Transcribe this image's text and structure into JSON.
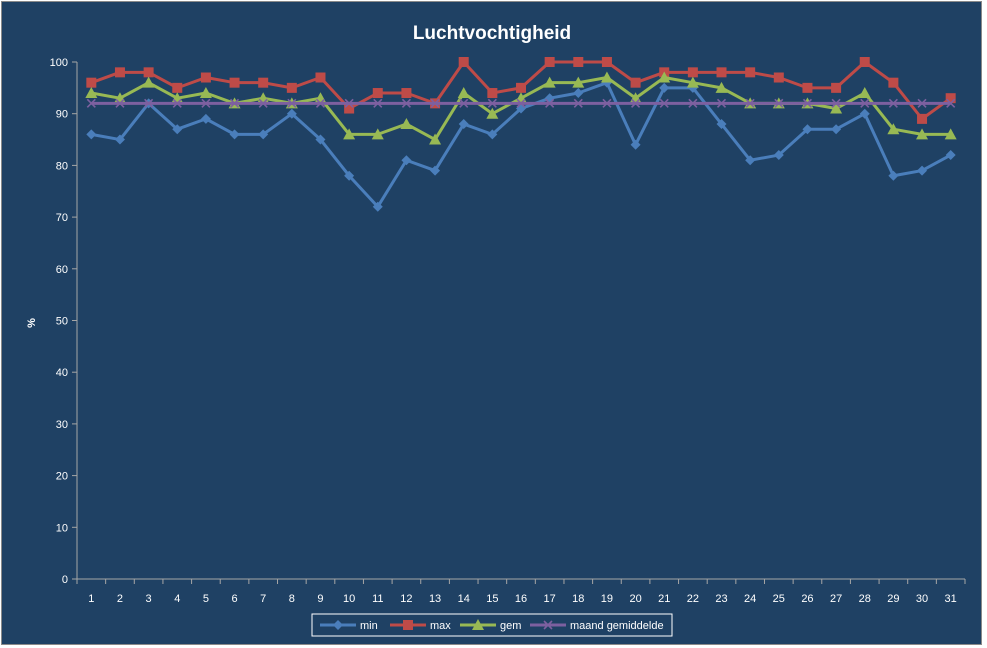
{
  "chart_data": {
    "type": "line",
    "title": "Luchtvochtigheid",
    "xlabel": "",
    "ylabel": "%",
    "ylim": [
      0,
      100
    ],
    "yticks": [
      0,
      10,
      20,
      30,
      40,
      50,
      60,
      70,
      80,
      90,
      100
    ],
    "grid": false,
    "legend_position": "bottom",
    "categories": [
      "1",
      "2",
      "3",
      "4",
      "5",
      "6",
      "7",
      "8",
      "9",
      "10",
      "11",
      "12",
      "13",
      "14",
      "15",
      "16",
      "17",
      "18",
      "19",
      "20",
      "21",
      "22",
      "23",
      "24",
      "25",
      "26",
      "27",
      "28",
      "29",
      "30",
      "31"
    ],
    "series": [
      {
        "name": "min",
        "color": "#4a7ebb",
        "marker": "diamond",
        "values": [
          86,
          85,
          92,
          87,
          89,
          86,
          86,
          90,
          85,
          78,
          72,
          81,
          79,
          88,
          86,
          91,
          93,
          94,
          96,
          84,
          95,
          95,
          88,
          81,
          82,
          87,
          87,
          90,
          78,
          79,
          82
        ]
      },
      {
        "name": "max",
        "color": "#be4b48",
        "marker": "square",
        "values": [
          96,
          98,
          98,
          95,
          97,
          96,
          96,
          95,
          97,
          91,
          94,
          94,
          92,
          100,
          94,
          95,
          100,
          100,
          100,
          96,
          98,
          98,
          98,
          98,
          97,
          95,
          95,
          100,
          96,
          89,
          93
        ]
      },
      {
        "name": "gem",
        "color": "#98b954",
        "marker": "triangle",
        "values": [
          94,
          93,
          96,
          93,
          94,
          92,
          93,
          92,
          93,
          86,
          86,
          88,
          85,
          94,
          90,
          93,
          96,
          96,
          97,
          93,
          97,
          96,
          95,
          92,
          92,
          92,
          91,
          94,
          87,
          86,
          86
        ]
      },
      {
        "name": "maand gemiddelde",
        "color": "#7d60a0",
        "marker": "x",
        "values": [
          92,
          92,
          92,
          92,
          92,
          92,
          92,
          92,
          92,
          92,
          92,
          92,
          92,
          92,
          92,
          92,
          92,
          92,
          92,
          92,
          92,
          92,
          92,
          92,
          92,
          92,
          92,
          92,
          92,
          92,
          92
        ]
      }
    ]
  }
}
